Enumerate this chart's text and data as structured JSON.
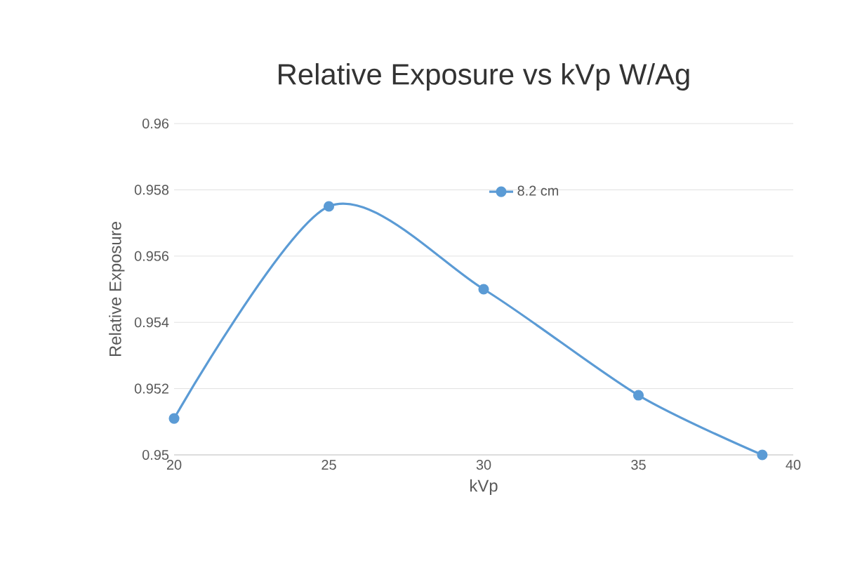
{
  "chart_data": {
    "type": "line",
    "title": "Relative Exposure vs kVp W/Ag",
    "xlabel": "kVp",
    "ylabel": "Relative Exposure",
    "x": [
      20,
      25,
      30,
      35,
      39
    ],
    "series": [
      {
        "name": "8.2 cm",
        "color": "#5b9bd5",
        "values": [
          0.9511,
          0.9575,
          0.955,
          0.9518,
          0.95
        ]
      }
    ],
    "xlim": [
      20,
      40
    ],
    "xticks": [
      20,
      25,
      30,
      35,
      40
    ],
    "ylim": [
      0.95,
      0.96
    ],
    "yticks": [
      0.95,
      0.952,
      0.954,
      0.956,
      0.958,
      0.96
    ],
    "grid": "y",
    "legend": "top",
    "marker": "circle",
    "line_style": "solid"
  }
}
